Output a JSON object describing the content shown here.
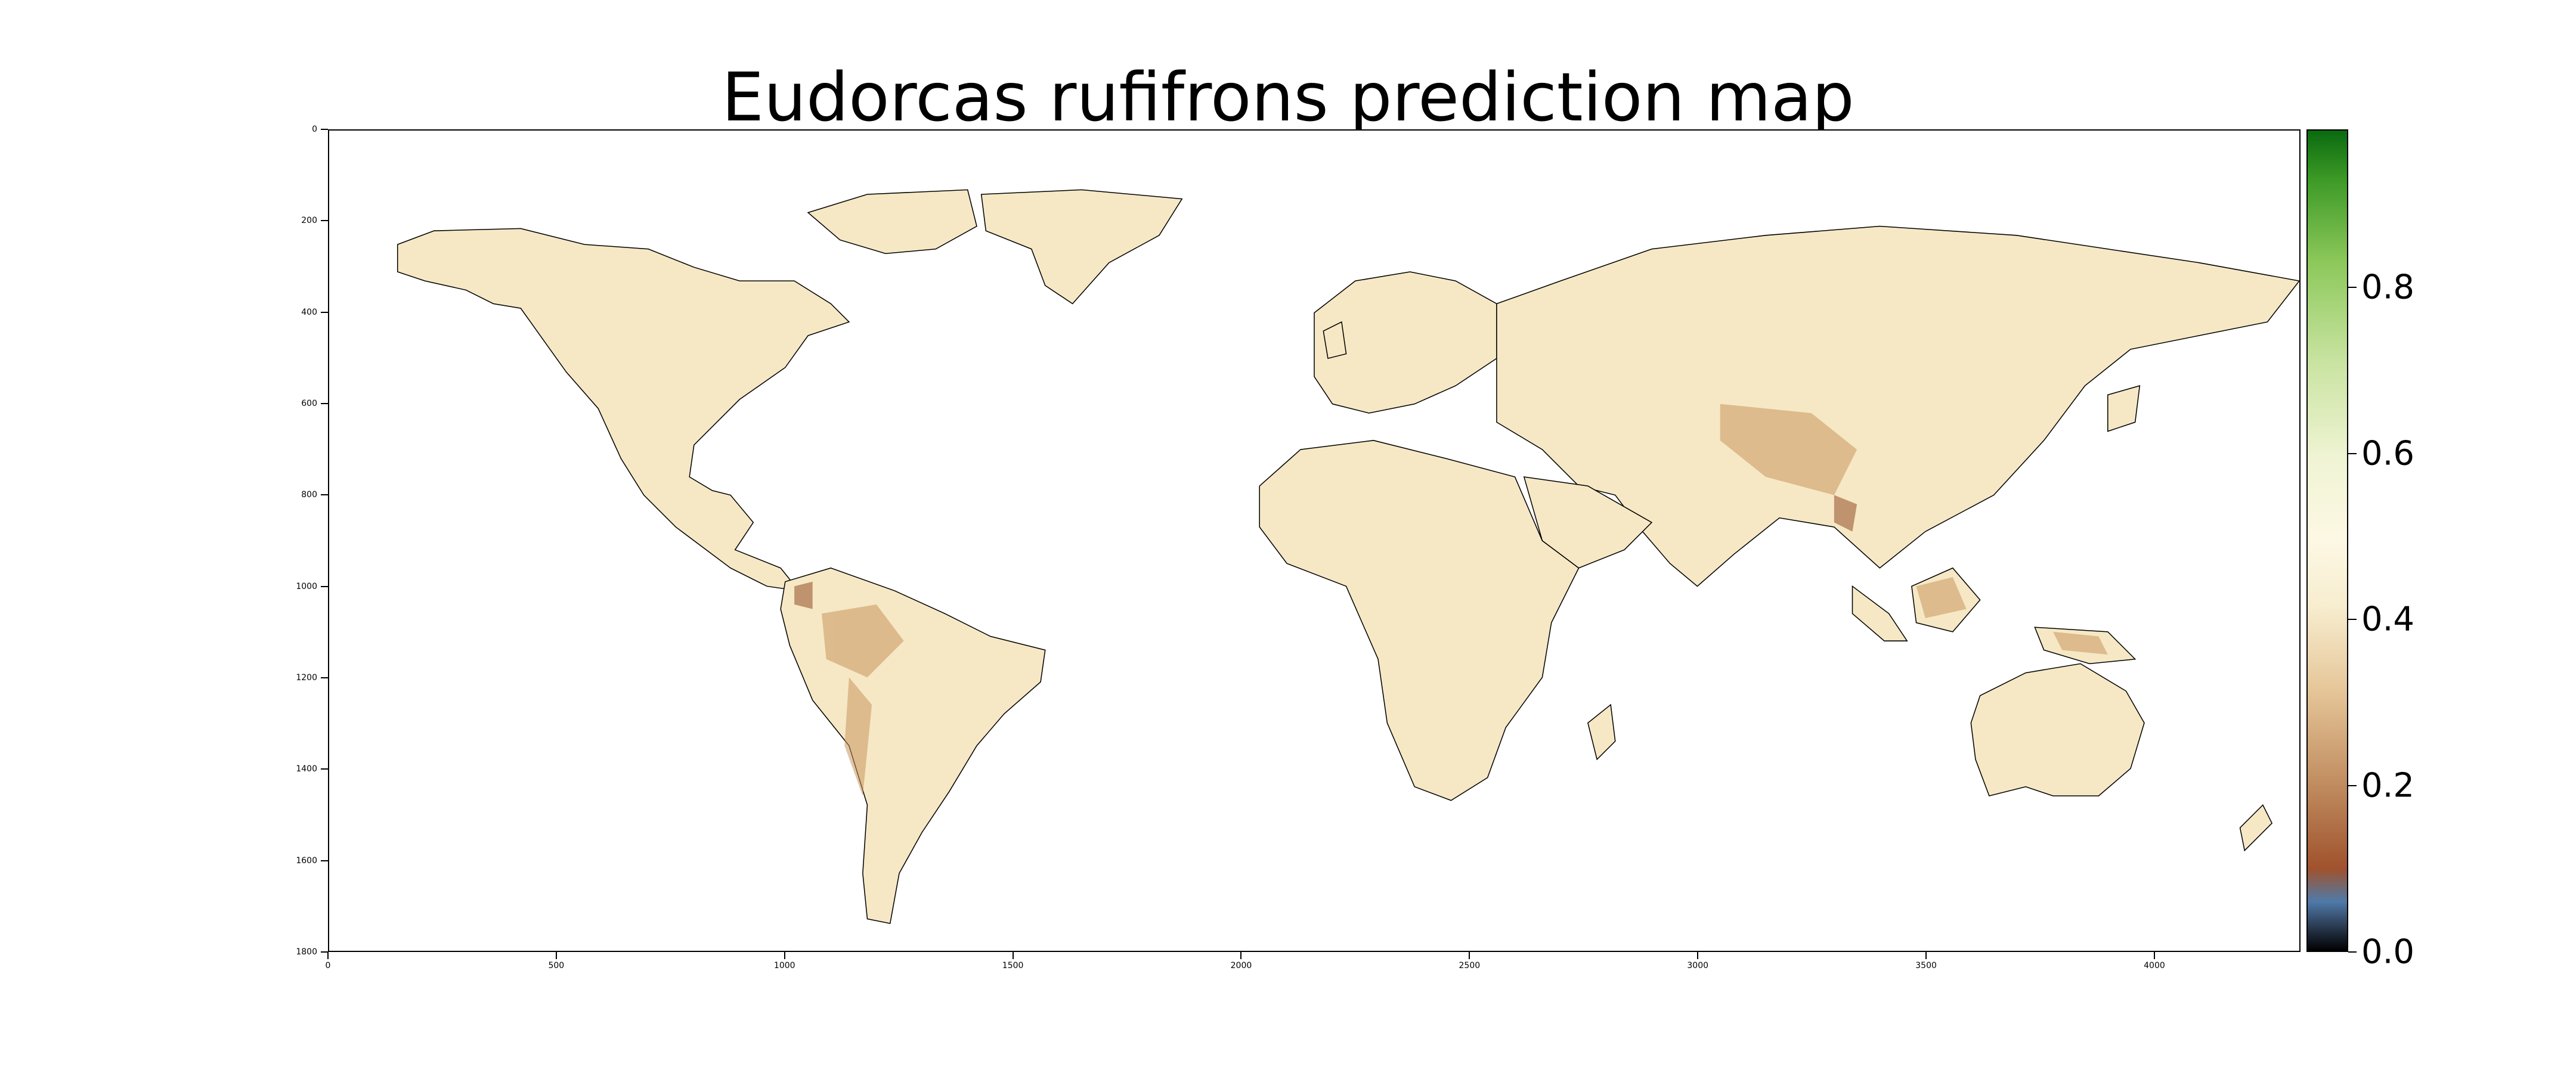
{
  "title": "Eudorcas rufifrons prediction map",
  "x_axis": {
    "ticks": [
      "0",
      "500",
      "1000",
      "1500",
      "2000",
      "2500",
      "3000",
      "3500",
      "4000"
    ],
    "values": [
      0,
      500,
      1000,
      1500,
      2000,
      2500,
      3000,
      3500,
      4000
    ],
    "range": [
      0,
      4320
    ]
  },
  "y_axis": {
    "ticks": [
      "0",
      "200",
      "400",
      "600",
      "800",
      "1000",
      "1200",
      "1400",
      "1600",
      "1800"
    ],
    "values": [
      0,
      200,
      400,
      600,
      800,
      1000,
      1200,
      1400,
      1600,
      1800
    ],
    "range": [
      0,
      1800
    ]
  },
  "colorbar": {
    "ticks": [
      "0.0",
      "0.2",
      "0.4",
      "0.6",
      "0.8"
    ],
    "values": [
      0.0,
      0.2,
      0.4,
      0.6,
      0.8
    ],
    "range": [
      0,
      0.99
    ],
    "colormap": "brown-cream-green"
  },
  "colors": {
    "land_base": "#f6e8c5",
    "land_low": "#c9955f",
    "land_dark": "#9a5a32",
    "coast": "#000000"
  }
}
